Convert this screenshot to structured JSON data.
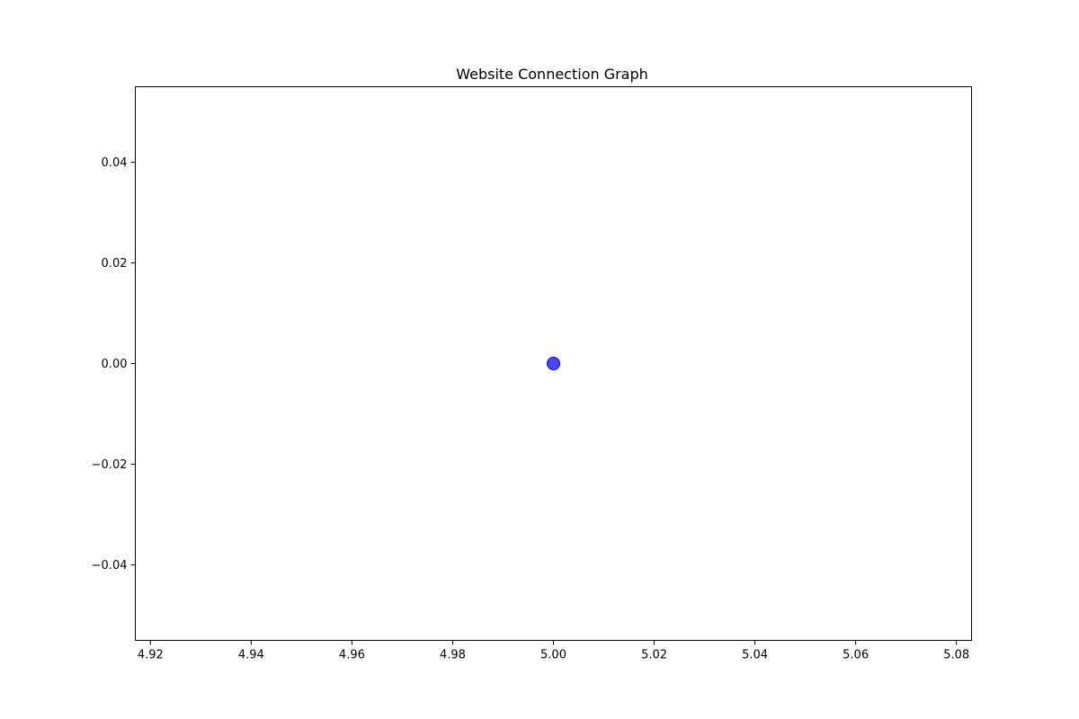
{
  "chart_data": {
    "type": "scatter",
    "title": "Website Connection Graph",
    "xlabel": "",
    "ylabel": "",
    "xlim": [
      4.917,
      5.083
    ],
    "ylim": [
      -0.055,
      0.055
    ],
    "xticks": [
      4.92,
      4.94,
      4.96,
      4.98,
      5.0,
      5.02,
      5.04,
      5.06,
      5.08
    ],
    "xtick_labels": [
      "4.92",
      "4.94",
      "4.96",
      "4.98",
      "5.00",
      "5.02",
      "5.04",
      "5.06",
      "5.08"
    ],
    "yticks": [
      0.04,
      0.02,
      0.0,
      -0.02,
      -0.04
    ],
    "ytick_labels": [
      "0.04",
      "0.02",
      "0.00",
      "−0.02",
      "−0.04"
    ],
    "grid": false,
    "points": [
      {
        "x": 5.0,
        "y": 0.0
      }
    ],
    "colors": {
      "point_fill": "#0000ff",
      "point_edge": "#0000cc"
    }
  }
}
